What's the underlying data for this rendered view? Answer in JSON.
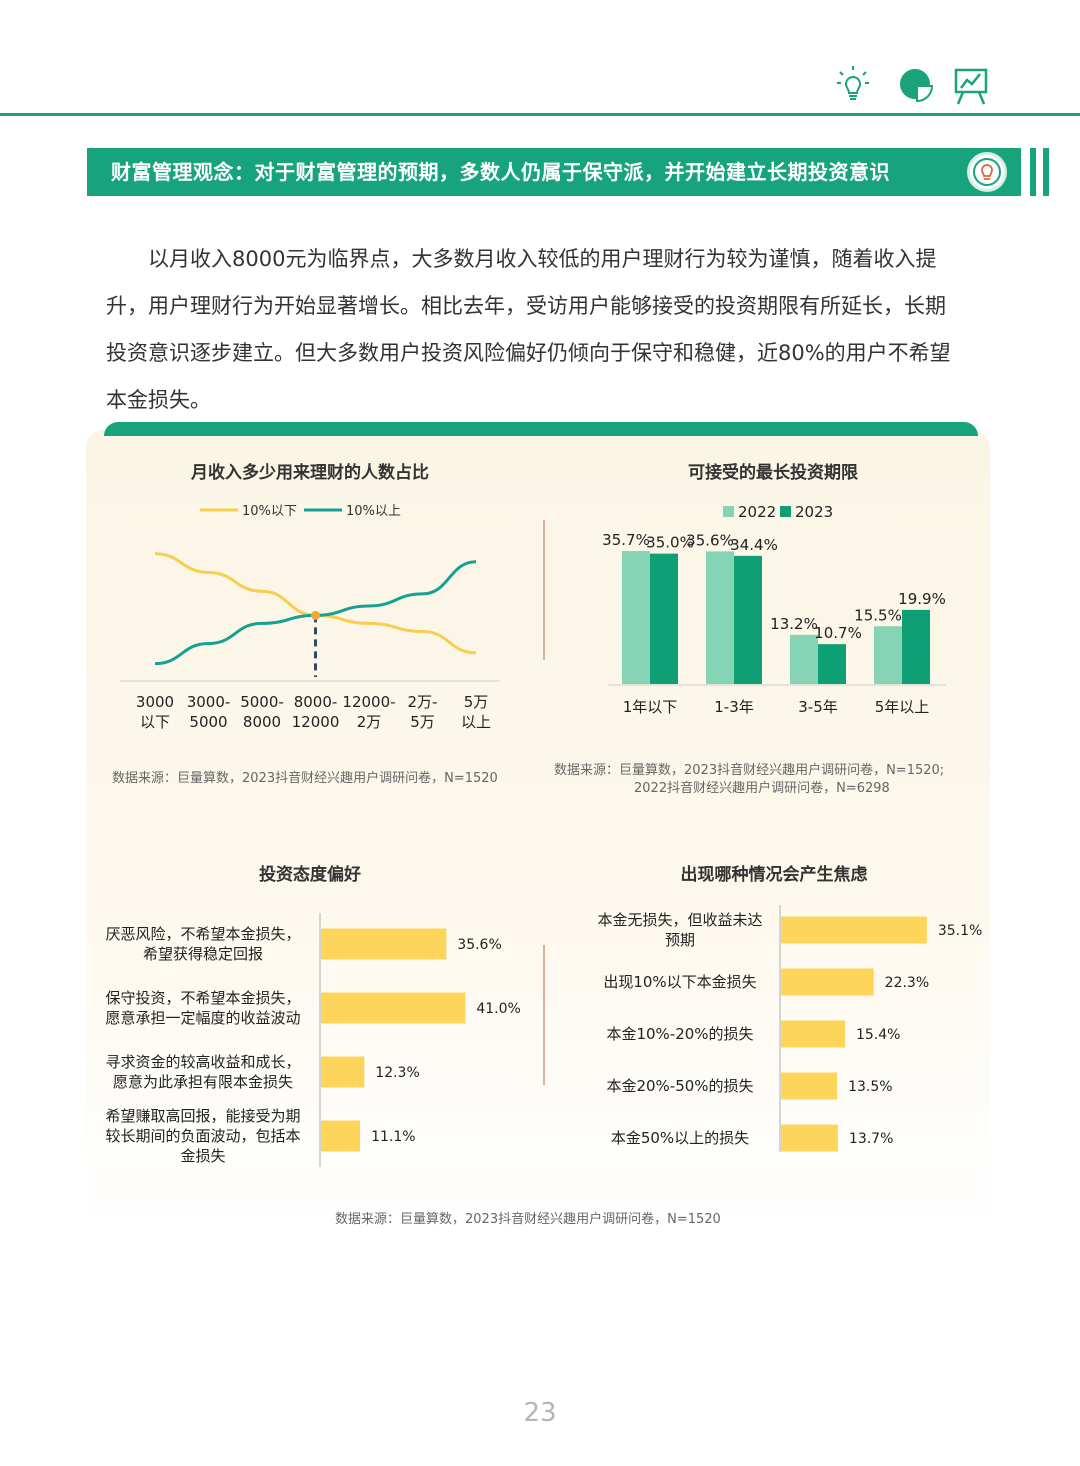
{
  "header": {
    "icons": [
      "lightbulb-icon",
      "pie-chart-icon",
      "presentation-icon"
    ],
    "banner_title": "财富管理观念：对于财富管理的预期，多数人仍属于保守派，并开始建立长期投资意识",
    "banner_icon": "lightbulb-badge-icon"
  },
  "intro": {
    "text": "以月收入8000元为临界点，大多数月收入较低的用户理财行为较为谨慎，随着收入提升，用户理财行为开始显著增长。相比去年，受访用户能够接受的投资期限有所延长，长期投资意识逐步建立。但大多数用户投资风险偏好仍倾向于保守和稳健，近80%的用户不希望本金损失。"
  },
  "colors": {
    "brand": "#17a37b",
    "yellow": "#f7ce4f",
    "teal": "#16a091",
    "light_green": "#86d4b6",
    "dark_green": "#0f9f74",
    "bar_yellow": "#fcd55a"
  },
  "chart_data": [
    {
      "id": "income-line",
      "type": "line",
      "title": "月收入多少用来理财的人数占比",
      "categories": [
        "3000\n以下",
        "3000-\n5000",
        "5000-\n8000",
        "8000-\n12000",
        "12000-\n2万",
        "2万-\n5万",
        "5万\n以上"
      ],
      "series": [
        {
          "name": "10%以下",
          "color": "#f7ce4f",
          "values": [
            92,
            78,
            64,
            46,
            40,
            34,
            18
          ]
        },
        {
          "name": "10%以上",
          "color": "#16a091",
          "values": [
            10,
            25,
            40,
            46,
            53,
            62,
            86
          ]
        }
      ],
      "crossover_index": 3,
      "ylim": [
        0,
        100
      ],
      "source": "数据来源：巨量算数，2023抖音财经兴趣用户调研问卷，N=1520"
    },
    {
      "id": "horizon-bar",
      "type": "bar",
      "title": "可接受的最长投资期限",
      "categories": [
        "1年以下",
        "1-3年",
        "3-5年",
        "5年以上"
      ],
      "series": [
        {
          "name": "2022",
          "color": "#86d4b6",
          "values": [
            35.7,
            35.6,
            13.2,
            15.5
          ]
        },
        {
          "name": "2023",
          "color": "#0f9f74",
          "values": [
            35.0,
            34.4,
            10.7,
            19.9
          ]
        }
      ],
      "unit": "%",
      "ylim": [
        0,
        40
      ],
      "source_lines": [
        "数据来源：巨量算数，2023抖音财经兴趣用户调研问卷，N=1520;",
        "2022抖音财经兴趣用户调研问卷，N=6298"
      ]
    },
    {
      "id": "attitude-hbar",
      "type": "bar",
      "orientation": "horizontal",
      "title": "投资态度偏好",
      "categories": [
        [
          "厌恶风险，不希望本金损失，",
          "希望获得稳定回报"
        ],
        [
          "保守投资，不希望本金损失，",
          "愿意承担一定幅度的收益波动"
        ],
        [
          "寻求资金的较高收益和成长，",
          "愿意为此承担有限本金损失"
        ],
        [
          "希望赚取高回报，能接受为期",
          "较长期间的负面波动，包括本",
          "金损失"
        ]
      ],
      "values": [
        35.6,
        41.0,
        12.3,
        11.1
      ],
      "unit": "%",
      "xlim": [
        0,
        50
      ]
    },
    {
      "id": "anxiety-hbar",
      "type": "bar",
      "orientation": "horizontal",
      "title": "出现哪种情况会产生焦虑",
      "categories": [
        [
          "本金无损失，但收益未达",
          "预期"
        ],
        [
          "出现10%以下本金损失"
        ],
        [
          "本金10%-20%的损失"
        ],
        [
          "本金20%-50%的损失"
        ],
        [
          "本金50%以上的损失"
        ]
      ],
      "values": [
        35.1,
        22.3,
        15.4,
        13.5,
        13.7
      ],
      "unit": "%",
      "xlim": [
        0,
        45
      ]
    }
  ],
  "bottom_source": "数据来源：巨量算数，2023抖音财经兴趣用户调研问卷，N=1520",
  "page_number": "23"
}
